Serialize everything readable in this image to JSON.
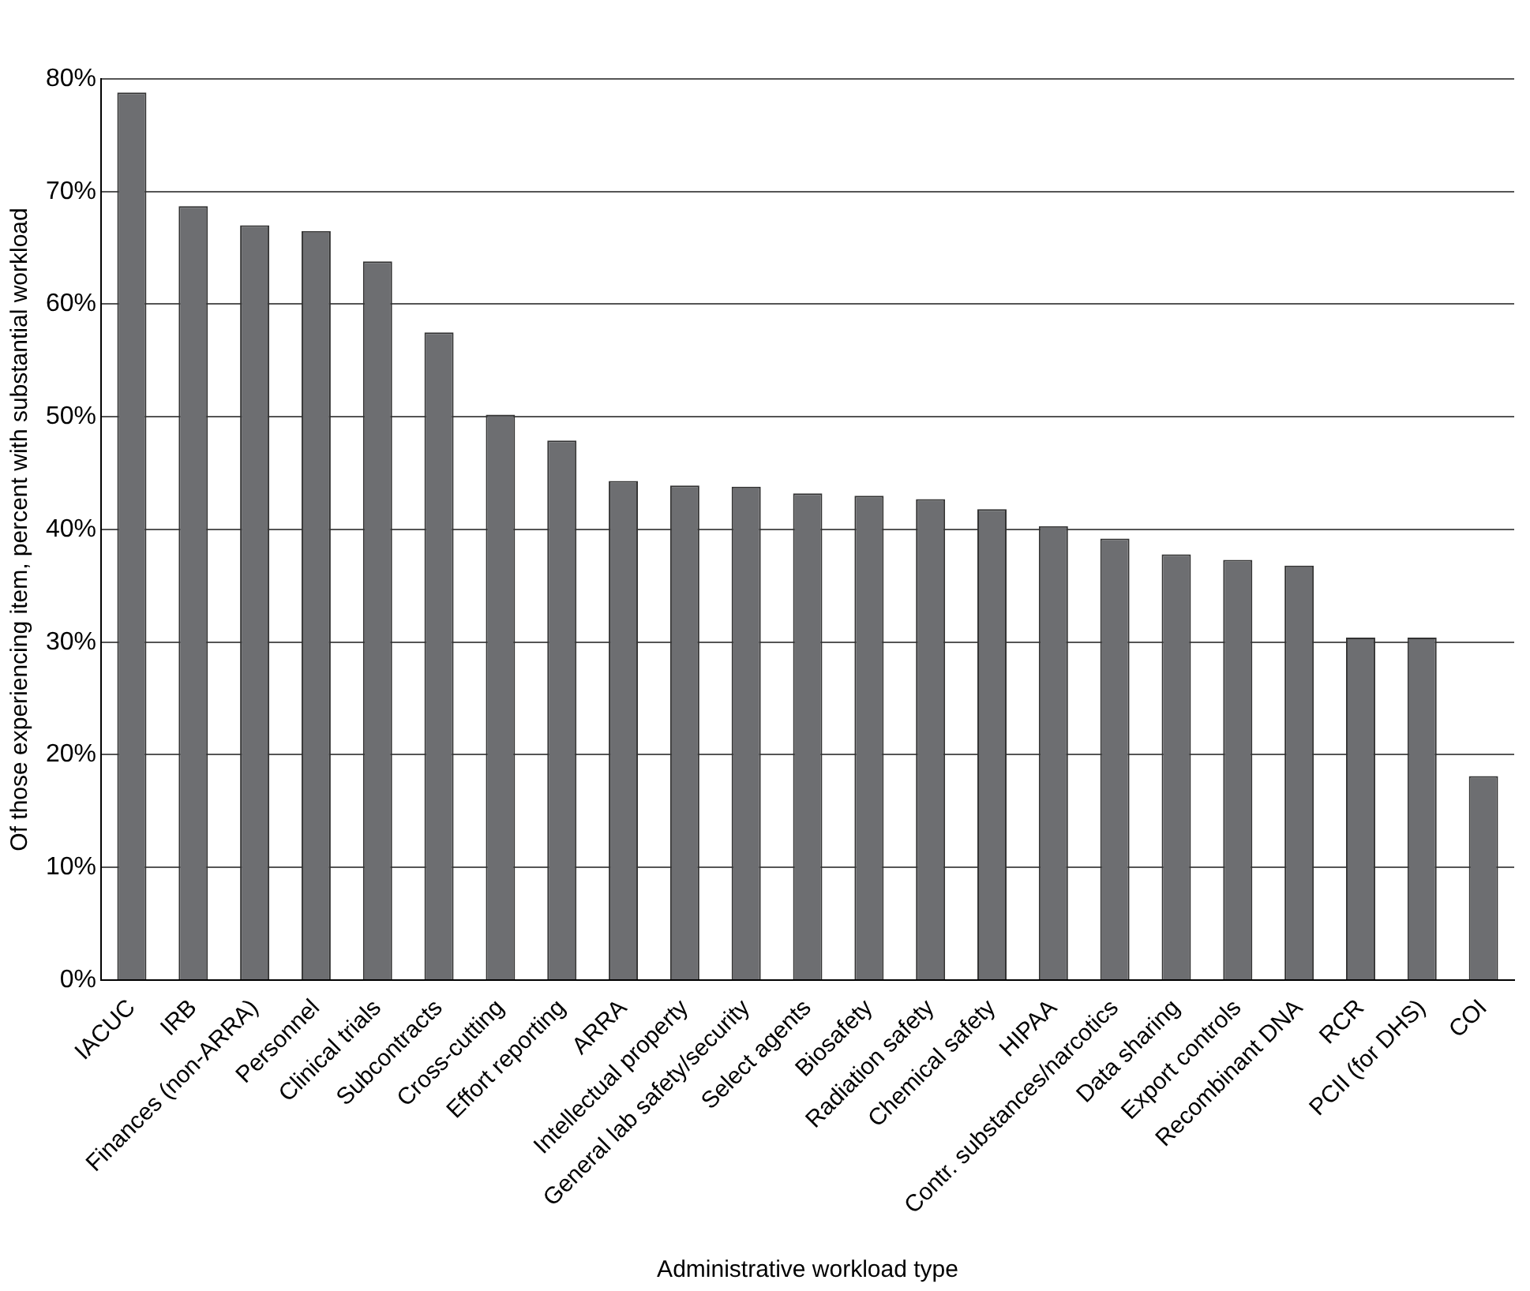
{
  "chart_data": {
    "type": "bar",
    "xlabel": "Administrative workload type",
    "ylabel": "Of those experiencing item, percent with substantial workload",
    "categories": [
      "IACUC",
      "IRB",
      "Finances (non-ARRA)",
      "Personnel",
      "Clinical trials",
      "Subcontracts",
      "Cross-cutting",
      "Effort reporting",
      "ARRA",
      "Intellectual property",
      "General lab safety/security",
      "Select agents",
      "Biosafety",
      "Radiation safety",
      "Chemical safety",
      "HIPAA",
      "Contr. substances/narcotics",
      "Data sharing",
      "Export controls",
      "Recombinant DNA",
      "RCR",
      "PCII (for DHS)",
      "COI"
    ],
    "values": [
      78.8,
      68.7,
      67,
      66.5,
      63.8,
      57.5,
      50.2,
      47.9,
      44.3,
      43.9,
      43.8,
      43.2,
      43,
      42.7,
      41.8,
      40.3,
      39.2,
      37.8,
      37.3,
      36.8,
      30.4,
      30.4,
      18.1
    ],
    "color": "#6d6e71",
    "ylim": [
      0,
      80
    ],
    "yticks": [
      {
        "value": 0,
        "label": "0%"
      },
      {
        "value": 10,
        "label": "10%"
      },
      {
        "value": 20,
        "label": "20%"
      },
      {
        "value": 30,
        "label": "30%"
      },
      {
        "value": 40,
        "label": "40%"
      },
      {
        "value": 50,
        "label": "50%"
      },
      {
        "value": 60,
        "label": "60%"
      },
      {
        "value": 70,
        "label": "70%"
      },
      {
        "value": 80,
        "label": "80%"
      }
    ],
    "grid": "y",
    "legend": false
  }
}
